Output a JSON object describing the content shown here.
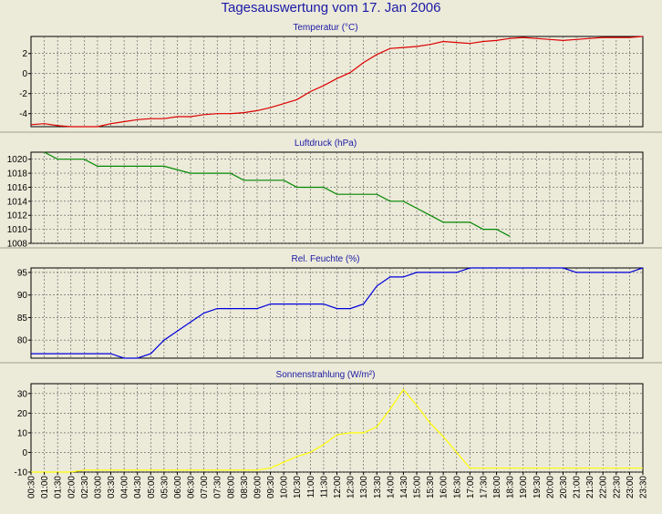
{
  "window": {
    "title": "Tagesauswertung vom 17. Jan 2006"
  },
  "colors": {
    "background": "#ecead9",
    "plot_background": "#ecead9",
    "grid": "#555555",
    "temperature": "#dd0000",
    "pressure": "#008800",
    "humidity": "#0000dd",
    "radiation": "#ffff00"
  },
  "chart_data": [
    {
      "type": "line",
      "title": "Temperatur (°C)",
      "ylim": [
        -5.3,
        3.7
      ],
      "yticks": [
        "2",
        "0",
        "-2",
        "-4"
      ],
      "ytick_values": [
        2,
        0,
        -2,
        -4
      ],
      "grid": true,
      "series": [
        {
          "color": "#dd0000",
          "x": [
            0,
            1,
            2,
            3,
            4,
            5,
            6,
            7,
            8,
            9,
            10,
            11,
            12,
            13,
            14,
            15,
            16,
            17,
            18,
            19,
            20,
            21,
            22,
            23,
            24,
            25,
            26,
            27,
            28,
            29,
            30,
            31,
            32,
            33,
            34,
            35,
            36,
            37,
            38,
            39,
            40,
            41,
            42,
            43,
            44,
            45,
            46
          ],
          "y": [
            -5.1,
            -5.0,
            -5.2,
            -5.3,
            -5.3,
            -5.3,
            -5.0,
            -4.8,
            -4.6,
            -4.5,
            -4.5,
            -4.3,
            -4.3,
            -4.1,
            -4.0,
            -4.0,
            -3.9,
            -3.7,
            -3.4,
            -3.0,
            -2.6,
            -1.8,
            -1.2,
            -0.5,
            0.1,
            1.1,
            1.9,
            2.5,
            2.6,
            2.7,
            2.9,
            3.2,
            3.1,
            3.0,
            3.2,
            3.3,
            3.5,
            3.6,
            3.5,
            3.4,
            3.3,
            3.4,
            3.5,
            3.6,
            3.6,
            3.6,
            3.7
          ]
        }
      ]
    },
    {
      "type": "line",
      "title": "Luftdruck (hPa)",
      "ylim": [
        1008,
        1021
      ],
      "yticks": [
        "1020",
        "1018",
        "1016",
        "1014",
        "1012",
        "1010",
        "1008"
      ],
      "ytick_values": [
        1020,
        1018,
        1016,
        1014,
        1012,
        1010,
        1008
      ],
      "grid": true,
      "series": [
        {
          "color": "#008800",
          "x": [
            1,
            2,
            4,
            5,
            7,
            8,
            9,
            10,
            12,
            13,
            14,
            15,
            16,
            17,
            18,
            19,
            20,
            21,
            22,
            23,
            24,
            25,
            26,
            27,
            28,
            29,
            30,
            31,
            33,
            34,
            35,
            36
          ],
          "y": [
            1021,
            1020,
            1020,
            1019,
            1019,
            1019,
            1019,
            1019,
            1018,
            1018,
            1018,
            1018,
            1017,
            1017,
            1017,
            1017,
            1016,
            1016,
            1016,
            1015,
            1015,
            1015,
            1015,
            1014,
            1014,
            1013,
            1012,
            1011,
            1011,
            1010,
            1010,
            1009
          ]
        }
      ]
    },
    {
      "type": "line",
      "title": "Rel. Feuchte (%)",
      "ylim": [
        76,
        96
      ],
      "yticks": [
        "95",
        "90",
        "85",
        "80"
      ],
      "ytick_values": [
        95,
        90,
        85,
        80
      ],
      "grid": true,
      "series": [
        {
          "color": "#0000dd",
          "x": [
            0,
            1,
            2,
            3,
            4,
            5,
            6,
            7,
            8,
            9,
            10,
            11,
            12,
            13,
            14,
            15,
            16,
            17,
            18,
            19,
            20,
            21,
            22,
            23,
            24,
            25,
            26,
            27,
            28,
            29,
            30,
            31,
            32,
            33,
            34,
            35,
            36,
            37,
            38,
            39,
            40,
            41,
            42,
            43,
            44,
            45,
            46
          ],
          "y": [
            77,
            77,
            77,
            77,
            77,
            77,
            77,
            76,
            76,
            77,
            80,
            82,
            84,
            86,
            87,
            87,
            87,
            87,
            88,
            88,
            88,
            88,
            88,
            87,
            87,
            88,
            92,
            94,
            94,
            95,
            95,
            95,
            95,
            96,
            96,
            96,
            96,
            96,
            96,
            96,
            96,
            95,
            95,
            95,
            95,
            95,
            96
          ]
        }
      ]
    },
    {
      "type": "line",
      "title": "Sonnenstrahlung (W/m²)",
      "ylim": [
        -10,
        35
      ],
      "yticks": [
        "30",
        "20",
        "10",
        "0",
        "-10"
      ],
      "ytick_values": [
        30,
        20,
        10,
        0,
        -10
      ],
      "grid": true,
      "series": [
        {
          "color": "#ffff00",
          "x": [
            0,
            3,
            4,
            5,
            16,
            17,
            18,
            19,
            20,
            21,
            22,
            23,
            24,
            25,
            26,
            27,
            28,
            29,
            30,
            31,
            32,
            33,
            46
          ],
          "y": [
            -10,
            -10,
            -9,
            -9,
            -9,
            -9,
            -8,
            -5,
            -2,
            0,
            4,
            9,
            10,
            10,
            13,
            22,
            32,
            24,
            15,
            8,
            0,
            -8,
            -8
          ]
        }
      ]
    }
  ],
  "x_axis": {
    "tick_labels": [
      "00:30",
      "01:00",
      "01:30",
      "02:00",
      "02:30",
      "03:00",
      "03:30",
      "04:00",
      "04:30",
      "05:00",
      "05:30",
      "06:00",
      "06:30",
      "07:00",
      "07:30",
      "08:00",
      "08:30",
      "09:00",
      "09:30",
      "10:00",
      "10:30",
      "11:00",
      "11:30",
      "12:00",
      "12:30",
      "13:00",
      "13:30",
      "14:00",
      "14:30",
      "15:00",
      "15:30",
      "16:00",
      "16:30",
      "17:00",
      "17:30",
      "18:00",
      "18:30",
      "19:00",
      "19:30",
      "20:00",
      "20:30",
      "21:00",
      "21:30",
      "22:00",
      "22:30",
      "23:00",
      "23:30"
    ]
  }
}
